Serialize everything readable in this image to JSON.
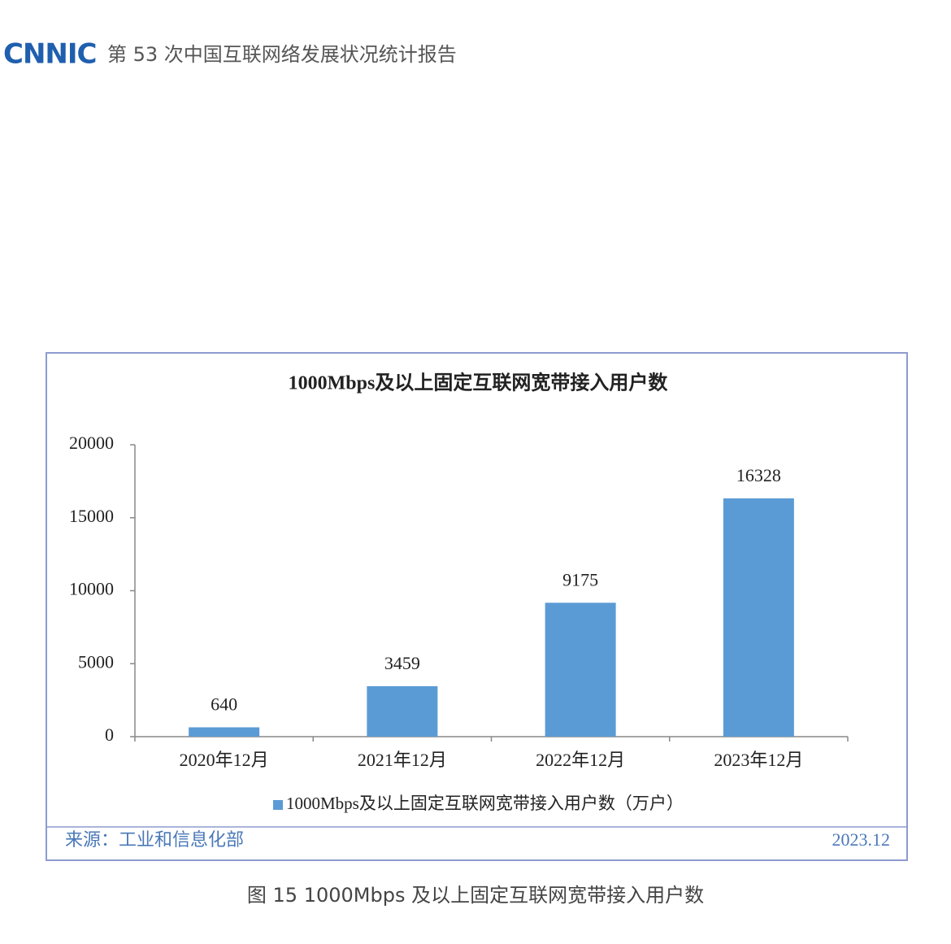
{
  "header": {
    "logo": "CNNIC",
    "title": "第 53 次中国互联网络发展状况统计报告"
  },
  "chart_data": {
    "type": "bar",
    "title": "1000Mbps及以上固定互联网宽带接入用户数",
    "categories": [
      "2020年12月",
      "2021年12月",
      "2022年12月",
      "2023年12月"
    ],
    "series": [
      {
        "name": "1000Mbps及以上固定互联网宽带接入用户数（万户）",
        "color": "#5b9bd5",
        "values": [
          640,
          3459,
          9175,
          16328
        ]
      }
    ],
    "ylim": [
      0,
      20000
    ],
    "yticks": [
      0,
      5000,
      10000,
      15000,
      20000
    ],
    "grid": false,
    "legend": "bottom"
  },
  "source": {
    "label": "来源：工业和信息化部",
    "date": "2023.12"
  },
  "caption": "图 15  1000Mbps 及以上固定互联网宽带接入用户数"
}
